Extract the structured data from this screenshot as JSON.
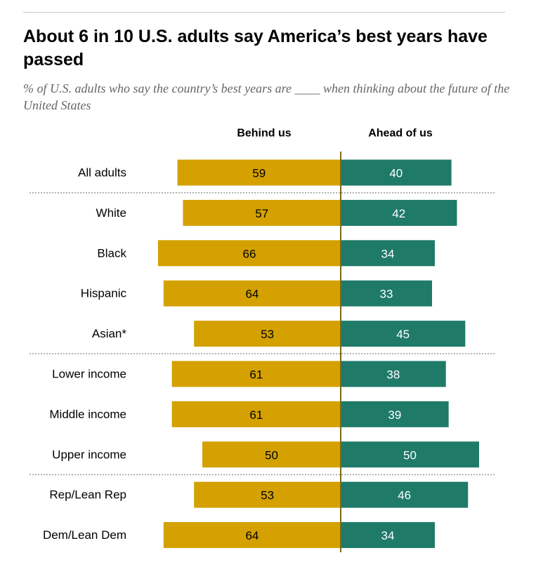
{
  "title": "About 6 in 10 U.S. adults say America’s best years have passed",
  "subtitle": "% of U.S. adults who say the country’s best years are ____ when thinking about the future of the United States",
  "colors": {
    "behind": "#d4a100",
    "ahead": "#1f7a68",
    "axis": "#7a6a1a",
    "separator": "#9a9a9a"
  },
  "chart_data": {
    "type": "bar",
    "orientation": "horizontal-diverging",
    "categories": [
      "All adults",
      "White",
      "Black",
      "Hispanic",
      "Asian*",
      "Lower income",
      "Middle income",
      "Upper income",
      "Rep/Lean Rep",
      "Dem/Lean Dem"
    ],
    "series": [
      {
        "name": "Behind us",
        "values": [
          59,
          57,
          66,
          64,
          53,
          61,
          61,
          50,
          53,
          64
        ]
      },
      {
        "name": "Ahead of us",
        "values": [
          40,
          42,
          34,
          33,
          45,
          38,
          39,
          50,
          46,
          34
        ]
      }
    ],
    "group_breaks_after": [
      0,
      4,
      7
    ],
    "grid": false
  }
}
